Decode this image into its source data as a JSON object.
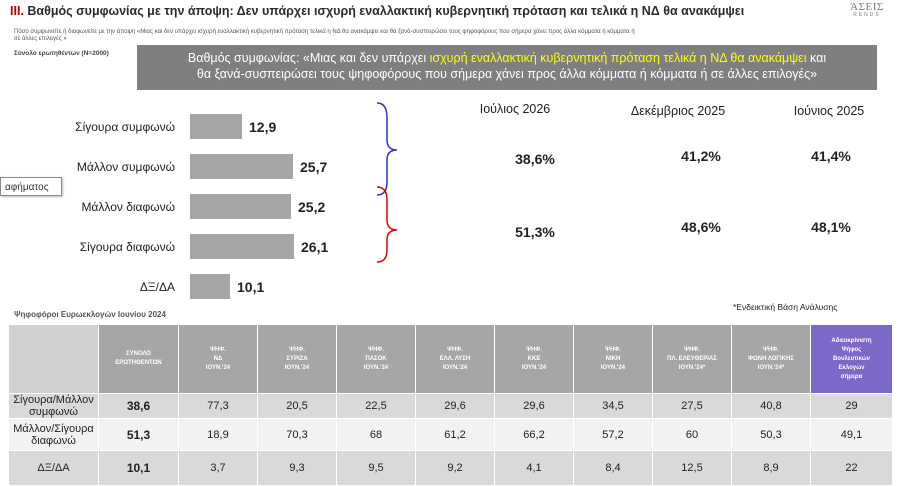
{
  "title": {
    "roman": "III.",
    "text": "Βαθμός συμφωνίας με την άποψη: Δεν υπάρχει ισχυρή εναλλακτική κυβερνητική πρόταση και τελικά η ΝΔ θα ανακάμψει"
  },
  "brand": {
    "line1": "ΆΣΕΙΣ",
    "line2": "RENDS"
  },
  "question": {
    "line1": "Πόσο συμφωνείτε ή διαφωνείτε με την άποψη «Μιας και δεν υπάρχει ισχυρή εναλλακτική κυβερνητική πρόταση τελικά η ΝΔ θα ανακάμψει και θα ξανά-συσπειρώσει τους ψηφοφόρους που σήμερα χάνει προς άλλα κόμματα ή κόμματα ή",
    "line2": "σε άλλες επιλογές »"
  },
  "sample": "Σύνολο ερωτηθέντων (Ν=2000)",
  "banner": {
    "part1": "Βαθμός συμφωνίας: «Μιας και δεν υπάρχει ",
    "highlight": "ισχυρή εναλλακτική κυβερνητική πρόταση τελικά η ΝΔ θα ανακάμψει",
    "part2": " και",
    "line2": "θα ξανά-συσπειρώσει τους  ψηφοφόρους που σήμερα χάνει προς άλλα κόμματα ή κόμματα ή  σε άλλες επιλογές»"
  },
  "tooltip": "αφήματος",
  "colors": {
    "agree": "#3333cc",
    "disagree": "#e60000",
    "bar": "#a6a6a6",
    "header_last": "#7b68c9"
  },
  "chart_data": {
    "type": "bar",
    "orientation": "horizontal",
    "categories": [
      "Σίγουρα συμφωνώ",
      "Μάλλον συμφωνώ",
      "Μάλλον διαφωνώ",
      "Σίγουρα διαφωνώ",
      "ΔΞ/ΔΑ"
    ],
    "values": [
      12.9,
      25.7,
      25.2,
      26.1,
      10.1
    ],
    "value_labels": [
      "12,9",
      "25,7",
      "25,2",
      "26,1",
      "10,1"
    ],
    "xlim": [
      0,
      40
    ],
    "grid": false
  },
  "comparison": {
    "headers": [
      "Ιούλιος 2026",
      "Δεκέμβριος 2025",
      "Ιούνιος 2025"
    ],
    "agree": [
      "38,6%",
      "41,2%",
      "41,4%"
    ],
    "disagree": [
      "51,3%",
      "48,6%",
      "48,1%"
    ]
  },
  "basis_note": "*Ενδεικτική Βάση Ανάλυσης",
  "voters_label": "Ψηφοφόροι Ευρωεκλογών Ιουνίου 2024",
  "table": {
    "columns": [
      [
        "ΣΥΝΟΛΟ",
        "ΕΡΩΤΗΘΕΝΤΩΝ"
      ],
      [
        "ΨΗΦ.",
        "ΝΔ",
        "ΙΟΥΝ.'24"
      ],
      [
        "ΨΗΦ.",
        "ΣΥΡΙΖΑ",
        "ΙΟΥΝ.'24"
      ],
      [
        "ΨΗΦ.",
        "ΠΑΣΟΚ",
        "ΙΟΥΝ.'24"
      ],
      [
        "ΨΗΦ.",
        "ΕΛΛ. ΛΥΣΗ",
        "ΙΟΥΝ.'24"
      ],
      [
        "ΨΗΦ.",
        "ΚΚΕ",
        "ΙΟΥΝ.'24"
      ],
      [
        "ΨΗΦ.",
        "ΝΙΚΗ",
        "ΙΟΥΝ.'24"
      ],
      [
        "ΨΗΦ.",
        "ΠΛ. ΕΛΕΥΘΕΡΙΑΣ",
        "ΙΟΥΝ.'24*"
      ],
      [
        "ΨΗΦ.",
        "ΦΩΝΗ ΛΟΓΙΚΗΣ",
        "ΙΟΥΝ.'24*"
      ],
      [
        "Αδιευκρίνιστη",
        "Ψήφος",
        "Βουλευτικών",
        "Εκλογών",
        "σήμερα"
      ]
    ],
    "rows": [
      {
        "label": [
          "Σίγουρα/Μάλλον",
          "συμφωνώ"
        ],
        "values": [
          "38,6",
          "77,3",
          "20,5",
          "22,5",
          "29,6",
          "29,6",
          "34,5",
          "27,5",
          "40,8",
          "29"
        ]
      },
      {
        "label": [
          "Μάλλον/Σίγουρα",
          "διαφωνώ"
        ],
        "values": [
          "51,3",
          "18,9",
          "70,3",
          "68",
          "61,2",
          "66,2",
          "57,2",
          "60",
          "50,3",
          "49,1"
        ]
      },
      {
        "label": [
          "ΔΞ/ΔΑ"
        ],
        "values": [
          "10,1",
          "3,7",
          "9,3",
          "9,5",
          "9,2",
          "4,1",
          "8,4",
          "12,5",
          "8,9",
          "22"
        ]
      }
    ]
  }
}
